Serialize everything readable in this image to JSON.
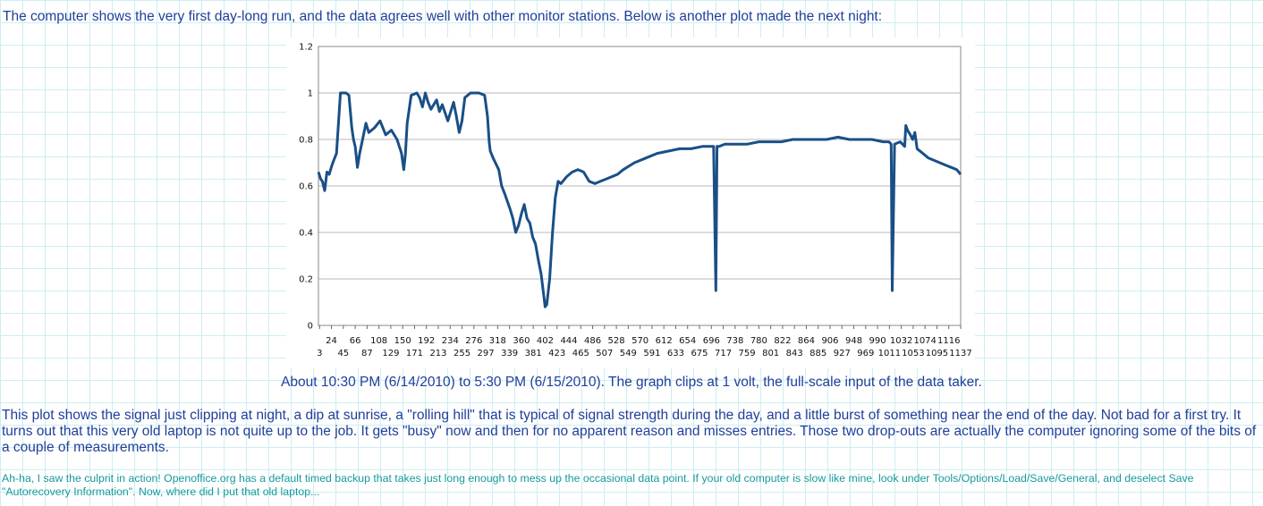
{
  "intro_text": "The computer shows the very first day-long run, and the data agrees well with other monitor stations. Below is another plot made the next night:",
  "caption_text": "About 10:30 PM (6/14/2010) to 5:30 PM (6/15/2010). The graph clips at 1 volt, the full-scale input of the data taker.",
  "paragraph_text": "This plot shows the signal just clipping at night, a dip at sunrise, a \"rolling hill\" that is typical of signal strength during the day, and a little burst of something near the end of the day. Not bad for a first try. It turns out that this very old laptop is not quite up to the job. It gets \"busy\" now and then for no apparent reason and misses entries. Those two drop-outs are actually the computer ignoring some of the bits of a couple of measurements.",
  "note_text": "Ah-ha, I saw the culprit in action! Openoffice.org has a default timed backup that takes just long enough to mess up the occasional data point. If your old computer is slow like mine, look under Tools/Options/Load/Save/General, and deselect Save \"Autorecovery Information\". Now, where did I put that old laptop...",
  "chart_data": {
    "type": "line",
    "ylim": [
      0,
      1.2
    ],
    "xlim": [
      1,
      1137
    ],
    "yticks": [
      0,
      0.2,
      0.4,
      0.6,
      0.8,
      1,
      1.2
    ],
    "xticks_row1": [
      24,
      66,
      108,
      150,
      192,
      234,
      276,
      318,
      360,
      402,
      444,
      486,
      528,
      570,
      612,
      654,
      696,
      738,
      780,
      822,
      864,
      906,
      948,
      990,
      1032,
      1074,
      1116
    ],
    "xticks_row2": [
      3,
      45,
      87,
      129,
      171,
      213,
      255,
      297,
      339,
      381,
      423,
      465,
      507,
      549,
      591,
      633,
      675,
      717,
      759,
      801,
      843,
      885,
      927,
      969,
      1011,
      1053,
      1095,
      1137
    ],
    "grid": true,
    "color": "#1a4f86",
    "series": [
      {
        "x": [
          1,
          5,
          8,
          12,
          16,
          20,
          25,
          28,
          33,
          40,
          50,
          55,
          60,
          63,
          66,
          70,
          74,
          80,
          85,
          90,
          100,
          110,
          120,
          130,
          140,
          148,
          152,
          155,
          158,
          165,
          175,
          180,
          185,
          190,
          195,
          200,
          210,
          215,
          220,
          230,
          240,
          245,
          250,
          255,
          260,
          270,
          276,
          285,
          295,
          300,
          303,
          305,
          310,
          320,
          325,
          330,
          340,
          345,
          350,
          355,
          360,
          365,
          370,
          375,
          380,
          385,
          390,
          395,
          398,
          400,
          402,
          405,
          410,
          415,
          420,
          425,
          430,
          440,
          450,
          460,
          470,
          480,
          490,
          500,
          510,
          520,
          530,
          540,
          560,
          580,
          600,
          620,
          640,
          660,
          680,
          695,
          700,
          704,
          706,
          710,
          720,
          740,
          760,
          780,
          800,
          820,
          840,
          860,
          880,
          900,
          920,
          940,
          960,
          980,
          1000,
          1010,
          1014,
          1016,
          1020,
          1030,
          1038,
          1040,
          1043,
          1048,
          1052,
          1056,
          1060,
          1070,
          1080,
          1090,
          1100,
          1110,
          1120,
          1130,
          1137
        ],
        "values": [
          0.66,
          0.63,
          0.62,
          0.58,
          0.66,
          0.65,
          0.69,
          0.71,
          0.74,
          1.0,
          1.0,
          0.99,
          0.85,
          0.8,
          0.77,
          0.68,
          0.74,
          0.81,
          0.87,
          0.83,
          0.85,
          0.88,
          0.82,
          0.84,
          0.8,
          0.74,
          0.67,
          0.74,
          0.87,
          0.99,
          1.0,
          0.98,
          0.94,
          1.0,
          0.96,
          0.93,
          0.97,
          0.92,
          0.95,
          0.88,
          0.96,
          0.9,
          0.83,
          0.88,
          0.98,
          1.0,
          1.0,
          1.0,
          0.99,
          0.9,
          0.79,
          0.75,
          0.72,
          0.67,
          0.6,
          0.57,
          0.5,
          0.46,
          0.4,
          0.43,
          0.48,
          0.52,
          0.46,
          0.44,
          0.38,
          0.35,
          0.28,
          0.22,
          0.16,
          0.12,
          0.08,
          0.09,
          0.2,
          0.4,
          0.55,
          0.62,
          0.61,
          0.64,
          0.66,
          0.67,
          0.66,
          0.62,
          0.61,
          0.62,
          0.63,
          0.64,
          0.65,
          0.67,
          0.7,
          0.72,
          0.74,
          0.75,
          0.76,
          0.76,
          0.77,
          0.77,
          0.77,
          0.15,
          0.77,
          0.77,
          0.78,
          0.78,
          0.78,
          0.79,
          0.79,
          0.79,
          0.8,
          0.8,
          0.8,
          0.8,
          0.81,
          0.8,
          0.8,
          0.8,
          0.79,
          0.79,
          0.78,
          0.15,
          0.78,
          0.79,
          0.77,
          0.86,
          0.84,
          0.82,
          0.8,
          0.83,
          0.76,
          0.74,
          0.72,
          0.71,
          0.7,
          0.69,
          0.68,
          0.67,
          0.65
        ]
      }
    ]
  }
}
